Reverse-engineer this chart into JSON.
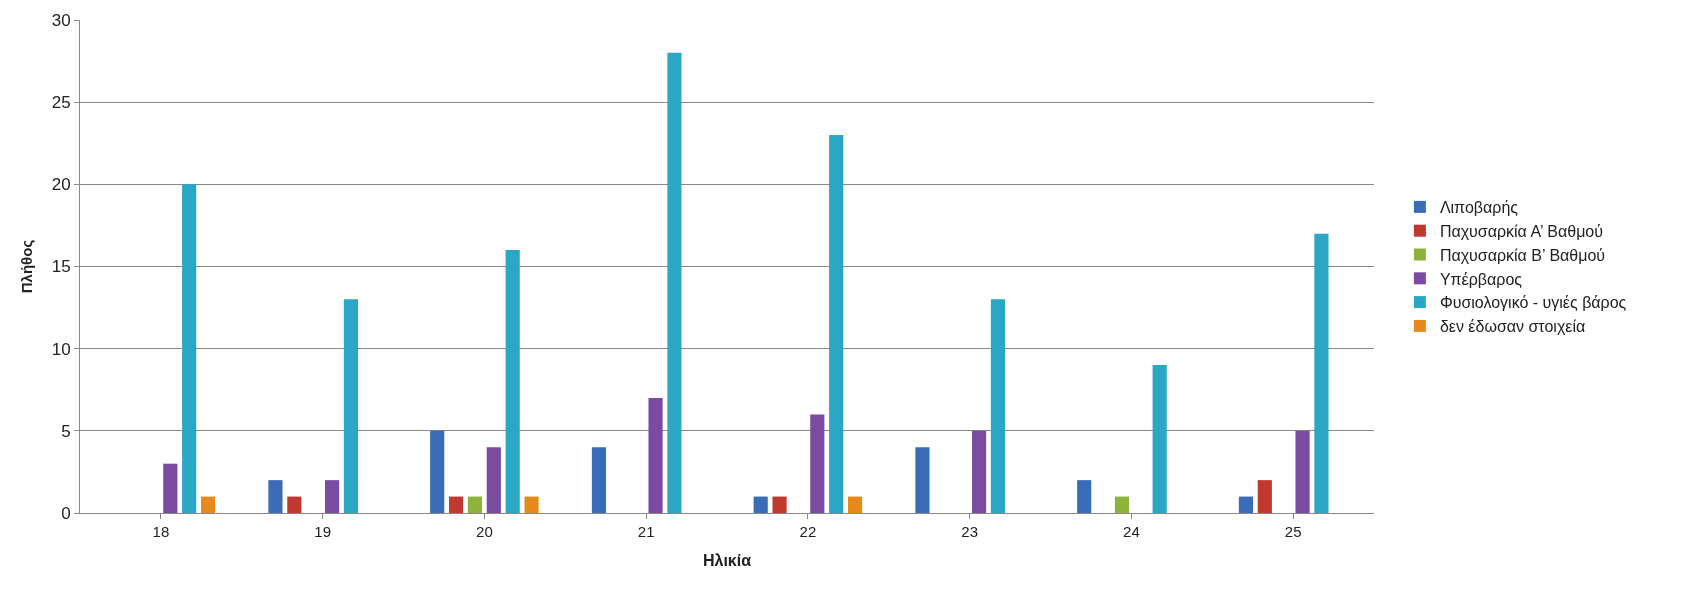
{
  "chart_data": {
    "type": "bar",
    "xlabel": "Ηλικία",
    "ylabel": "Πλήθος",
    "categories": [
      "18",
      "19",
      "20",
      "21",
      "22",
      "23",
      "24",
      "25"
    ],
    "series": [
      {
        "name": "Λιποβαρής",
        "color": "#3b6cb7",
        "values": [
          0,
          2,
          5,
          4,
          1,
          4,
          2,
          1
        ]
      },
      {
        "name": "Παχυσαρκία Α’ Βαθμού",
        "color": "#c0392e",
        "values": [
          0,
          1,
          1,
          0,
          1,
          0,
          0,
          2
        ]
      },
      {
        "name": "Παχυσαρκία Β’ Βαθμού",
        "color": "#8db33a",
        "values": [
          0,
          0,
          1,
          0,
          0,
          0,
          1,
          0
        ]
      },
      {
        "name": "Υπέρβαρος",
        "color": "#7a4ba0",
        "values": [
          3,
          2,
          4,
          7,
          6,
          5,
          0,
          5
        ]
      },
      {
        "name": "Φυσιολογικό - υγιές βάρος",
        "color": "#2aa7c4",
        "values": [
          20,
          13,
          16,
          28,
          23,
          13,
          9,
          17
        ]
      },
      {
        "name": "δεν έδωσαν στοιχεία",
        "color": "#e8891c",
        "values": [
          1,
          0,
          1,
          0,
          1,
          0,
          0,
          0
        ]
      }
    ],
    "ylim": [
      0,
      30
    ],
    "yticks": [
      0,
      5,
      10,
      15,
      20,
      25,
      30
    ],
    "grid": "y",
    "legend": "right"
  }
}
